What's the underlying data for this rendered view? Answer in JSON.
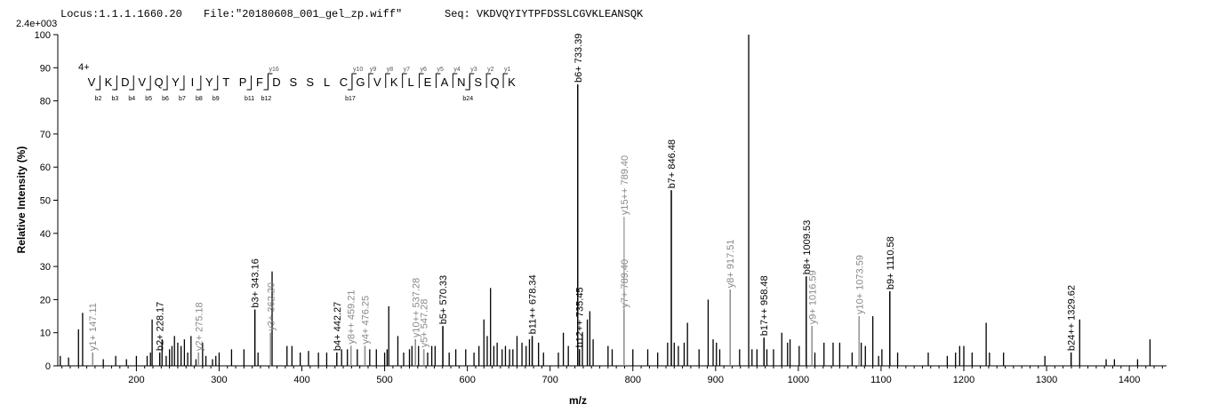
{
  "header": {
    "locus": "Locus:1.1.1.1660.20",
    "file": "File:\"20180608_001_gel_zp.wiff\"",
    "seq": "Seq: VKDVQYIYTPFDSSLCGVKLEANSQK",
    "scale": "2.4e+003"
  },
  "chart_data": {
    "type": "bar",
    "xlabel": "m/z",
    "ylabel": "Relative Intensity (%)",
    "xlim": [
      105,
      1445
    ],
    "ylim": [
      0,
      100
    ],
    "xticks": [
      200,
      300,
      400,
      500,
      600,
      700,
      800,
      900,
      1000,
      1100,
      1200,
      1300,
      1400
    ],
    "yticks": [
      0,
      10,
      20,
      30,
      40,
      50,
      60,
      70,
      80,
      90,
      100
    ],
    "peaks": [
      [
        108,
        3
      ],
      [
        118,
        2.5
      ],
      [
        130,
        11
      ],
      [
        135,
        16
      ],
      [
        147.11,
        4
      ],
      [
        160,
        2
      ],
      [
        175,
        3
      ],
      [
        188,
        2
      ],
      [
        200,
        3
      ],
      [
        213,
        3
      ],
      [
        217,
        4
      ],
      [
        219,
        14
      ],
      [
        228.17,
        4
      ],
      [
        231,
        8
      ],
      [
        236,
        3
      ],
      [
        240,
        5
      ],
      [
        243,
        6
      ],
      [
        246,
        9
      ],
      [
        250,
        7
      ],
      [
        254,
        6
      ],
      [
        258,
        8
      ],
      [
        262,
        4
      ],
      [
        266,
        9
      ],
      [
        272,
        2
      ],
      [
        275.18,
        4
      ],
      [
        280,
        7
      ],
      [
        284,
        3
      ],
      [
        292,
        2
      ],
      [
        296,
        3
      ],
      [
        300,
        4
      ],
      [
        315,
        5
      ],
      [
        330,
        5
      ],
      [
        343.16,
        17
      ],
      [
        347,
        4
      ],
      [
        362.2,
        10
      ],
      [
        364,
        28.5
      ],
      [
        382,
        6
      ],
      [
        388,
        6
      ],
      [
        398,
        4
      ],
      [
        408,
        4.5
      ],
      [
        420,
        4
      ],
      [
        430,
        4
      ],
      [
        442.27,
        4
      ],
      [
        448,
        5
      ],
      [
        455,
        5
      ],
      [
        459.21,
        6
      ],
      [
        467,
        5
      ],
      [
        476.25,
        6
      ],
      [
        482,
        5
      ],
      [
        490,
        5
      ],
      [
        500,
        4
      ],
      [
        503,
        5
      ],
      [
        505,
        18
      ],
      [
        516,
        9
      ],
      [
        523,
        4
      ],
      [
        530,
        5
      ],
      [
        533,
        6
      ],
      [
        537.28,
        8
      ],
      [
        541,
        6
      ],
      [
        547.28,
        5
      ],
      [
        552,
        4
      ],
      [
        557,
        6
      ],
      [
        561,
        6
      ],
      [
        570.33,
        12
      ],
      [
        578,
        4
      ],
      [
        586,
        5
      ],
      [
        598,
        5
      ],
      [
        608,
        4
      ],
      [
        614,
        6
      ],
      [
        620,
        14
      ],
      [
        624,
        9
      ],
      [
        628,
        23.5
      ],
      [
        632,
        6
      ],
      [
        636,
        7
      ],
      [
        642,
        5
      ],
      [
        646,
        6
      ],
      [
        651,
        5
      ],
      [
        655,
        5
      ],
      [
        660,
        9
      ],
      [
        666,
        7
      ],
      [
        671,
        6
      ],
      [
        675,
        8
      ],
      [
        678.34,
        9
      ],
      [
        686,
        7
      ],
      [
        692,
        4
      ],
      [
        710,
        4
      ],
      [
        716,
        10
      ],
      [
        722,
        6
      ],
      [
        733.39,
        85
      ],
      [
        735.45,
        5
      ],
      [
        739,
        10
      ],
      [
        745,
        14
      ],
      [
        748,
        16.5
      ],
      [
        752,
        8
      ],
      [
        770,
        6
      ],
      [
        775,
        5
      ],
      [
        789.4,
        17
      ],
      [
        800,
        5
      ],
      [
        818,
        5
      ],
      [
        830,
        4
      ],
      [
        842,
        7
      ],
      [
        846.48,
        53
      ],
      [
        850,
        7
      ],
      [
        855,
        6
      ],
      [
        862,
        7
      ],
      [
        866,
        13
      ],
      [
        880,
        5
      ],
      [
        891,
        20
      ],
      [
        897,
        8
      ],
      [
        901,
        7
      ],
      [
        905,
        5
      ],
      [
        917.51,
        23
      ],
      [
        929,
        5
      ],
      [
        940,
        100
      ],
      [
        944,
        5
      ],
      [
        950,
        5
      ],
      [
        958.48,
        8.5
      ],
      [
        962,
        5
      ],
      [
        970,
        5
      ],
      [
        980,
        10
      ],
      [
        987,
        7
      ],
      [
        990,
        8
      ],
      [
        1001,
        6
      ],
      [
        1009.53,
        27
      ],
      [
        1016.59,
        12
      ],
      [
        1020,
        4
      ],
      [
        1031,
        7
      ],
      [
        1042,
        7
      ],
      [
        1050,
        7
      ],
      [
        1065,
        4
      ],
      [
        1073.59,
        15
      ],
      [
        1076,
        7
      ],
      [
        1081,
        6
      ],
      [
        1090,
        15
      ],
      [
        1097,
        3
      ],
      [
        1101,
        5
      ],
      [
        1110.58,
        22.5
      ],
      [
        1120,
        4
      ],
      [
        1157,
        4
      ],
      [
        1180,
        3
      ],
      [
        1190,
        4
      ],
      [
        1195,
        6
      ],
      [
        1200,
        6
      ],
      [
        1210,
        4
      ],
      [
        1227,
        13
      ],
      [
        1231,
        4
      ],
      [
        1248,
        4
      ],
      [
        1298,
        3
      ],
      [
        1329.62,
        4
      ],
      [
        1340,
        14
      ],
      [
        1372,
        2
      ],
      [
        1382,
        2
      ],
      [
        1410,
        2
      ],
      [
        1425,
        8
      ]
    ],
    "annotations": [
      {
        "x": 147.11,
        "y": 4,
        "label": "y1+ 147.11",
        "ion": "y"
      },
      {
        "x": 228.17,
        "y": 4,
        "label": "b2+ 228.17",
        "ion": "b"
      },
      {
        "x": 275.18,
        "y": 4,
        "label": "y2+ 275.18",
        "ion": "y"
      },
      {
        "x": 343.16,
        "y": 17,
        "label": "b3+ 343.16",
        "ion": "b"
      },
      {
        "x": 362.2,
        "y": 10,
        "label": "y3+ 362.20",
        "ion": "y"
      },
      {
        "x": 442.27,
        "y": 4,
        "label": "b4+ 442.27",
        "ion": "b"
      },
      {
        "x": 459.21,
        "y": 6,
        "label": "y8++ 459.21",
        "ion": "y"
      },
      {
        "x": 476.25,
        "y": 6,
        "label": "y4+ 476.25",
        "ion": "y"
      },
      {
        "x": 537.28,
        "y": 8,
        "label": "y10++ 537.28",
        "ion": "y"
      },
      {
        "x": 547.28,
        "y": 5,
        "label": "y5+ 547.28",
        "ion": "y"
      },
      {
        "x": 570.33,
        "y": 12,
        "label": "b5+ 570.33",
        "ion": "b"
      },
      {
        "x": 678.34,
        "y": 9,
        "label": "b11++ 678.34",
        "ion": "b"
      },
      {
        "x": 733.39,
        "y": 85,
        "label": "b6+ 733.39",
        "ion": "b"
      },
      {
        "x": 735.45,
        "y": 5,
        "label": "b12++ 735.45",
        "ion": "b"
      },
      {
        "x": 789.4,
        "y": 17,
        "label": "y7+ 789.40",
        "ion": "y"
      },
      {
        "x": 789.4,
        "y": 45,
        "label": "y15++ 789.40",
        "ion": "y"
      },
      {
        "x": 846.48,
        "y": 53,
        "label": "b7+ 846.48",
        "ion": "b"
      },
      {
        "x": 917.51,
        "y": 23,
        "label": "y8+ 917.51",
        "ion": "y"
      },
      {
        "x": 958.48,
        "y": 8.5,
        "label": "b17++ 958.48",
        "ion": "b"
      },
      {
        "x": 1009.53,
        "y": 27,
        "label": "b8+ 1009.53",
        "ion": "b"
      },
      {
        "x": 1016.59,
        "y": 12,
        "label": "y9+ 1016.59",
        "ion": "y"
      },
      {
        "x": 1073.59,
        "y": 15,
        "label": "y10+ 1073.59",
        "ion": "y"
      },
      {
        "x": 1110.58,
        "y": 22.5,
        "label": "b9+ 1110.58",
        "ion": "b"
      },
      {
        "x": 1329.62,
        "y": 4,
        "label": "b24++ 1329.62",
        "ion": "b"
      }
    ],
    "sequence": {
      "charge": "4+",
      "residues": [
        "V",
        "K",
        "D",
        "V",
        "Q",
        "Y",
        "I",
        "Y",
        "T",
        "P",
        "F",
        "D",
        "S",
        "S",
        "L",
        "C",
        "G",
        "V",
        "K",
        "L",
        "E",
        "A",
        "N",
        "S",
        "Q",
        "K"
      ],
      "y_ions": [
        {
          "after": 11,
          "label": "y16"
        },
        {
          "after": 16,
          "label": "y10"
        },
        {
          "after": 17,
          "label": "y9"
        },
        {
          "after": 18,
          "label": "y8"
        },
        {
          "after": 19,
          "label": "y7"
        },
        {
          "after": 20,
          "label": "y6"
        },
        {
          "after": 21,
          "label": "y5"
        },
        {
          "after": 22,
          "label": "y4"
        },
        {
          "after": 23,
          "label": "y3"
        },
        {
          "after": 24,
          "label": "y2"
        },
        {
          "after": 25,
          "label": "y1"
        }
      ],
      "b_ions": [
        {
          "after": 1,
          "label": "b2"
        },
        {
          "after": 2,
          "label": "b3"
        },
        {
          "after": 3,
          "label": "b4"
        },
        {
          "after": 4,
          "label": "b5"
        },
        {
          "after": 5,
          "label": "b6"
        },
        {
          "after": 6,
          "label": "b7"
        },
        {
          "after": 7,
          "label": "b8"
        },
        {
          "after": 8,
          "label": "b9"
        },
        {
          "after": 10,
          "label": "b11"
        },
        {
          "after": 11,
          "label": "b12"
        },
        {
          "after": 16,
          "label": "b17"
        },
        {
          "after": 23,
          "label": "b24"
        }
      ]
    }
  }
}
